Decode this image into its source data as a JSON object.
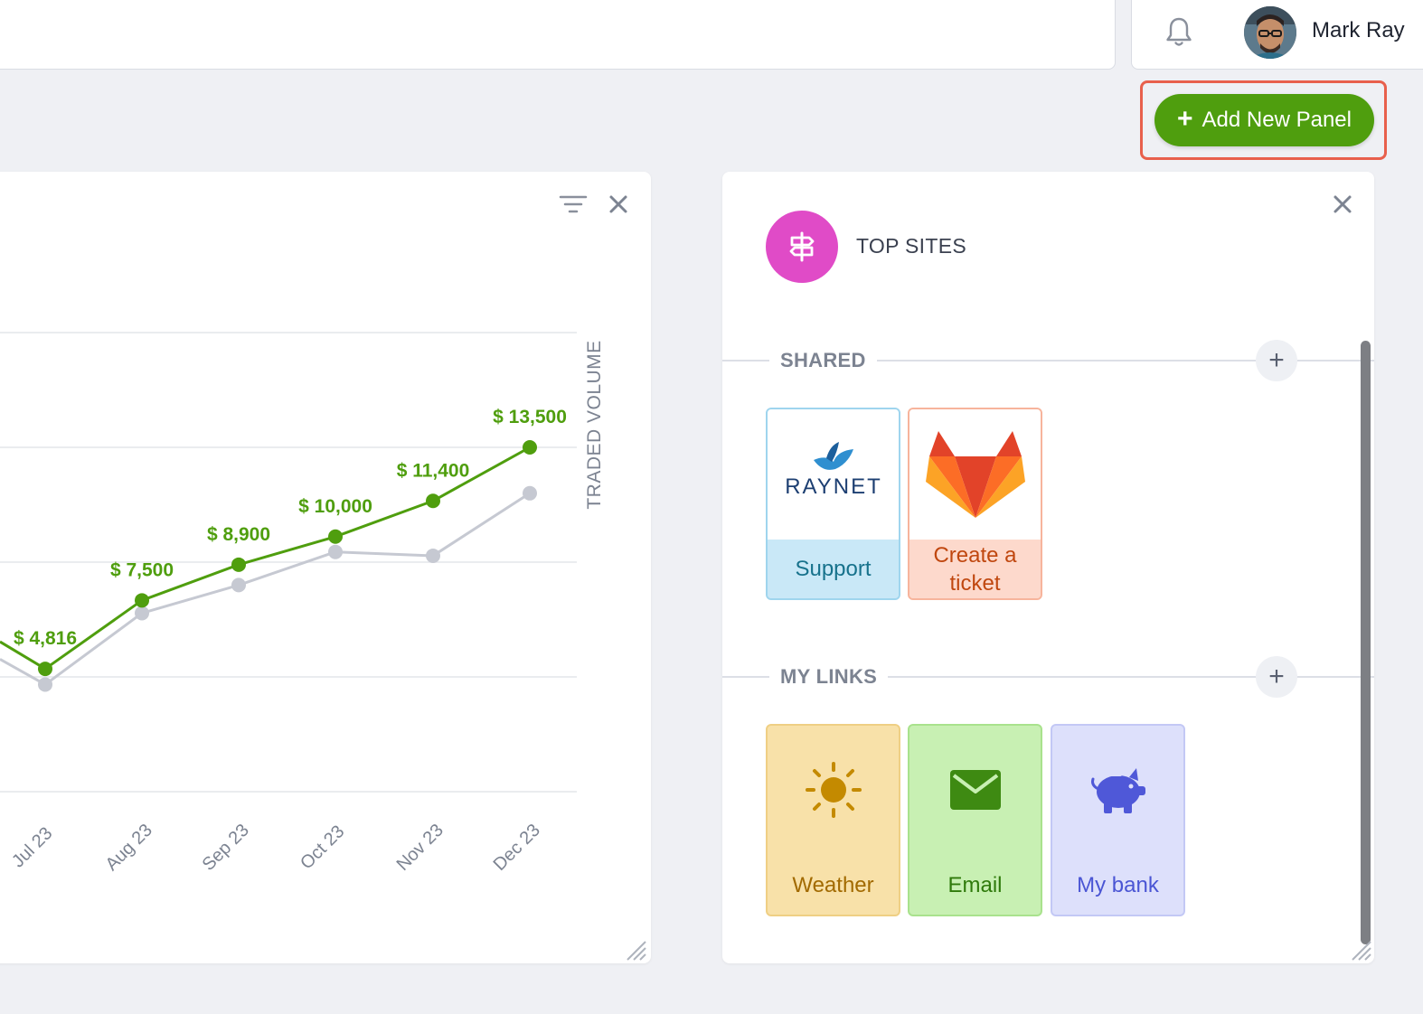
{
  "header": {
    "user_name": "Mark Ray"
  },
  "toolbar": {
    "add_panel_label": "Add New Panel"
  },
  "chart_panel": {
    "axis_title": "TRADED VOLUME"
  },
  "chart_data": {
    "type": "line",
    "x": [
      "Jul 23",
      "Aug 23",
      "Sep 23",
      "Oct 23",
      "Nov 23",
      "Dec 23"
    ],
    "x_tick_labels": [
      "Jul 23",
      "Aug 23",
      "Sep 23",
      "Oct 23",
      "Nov 23",
      "Dec 23"
    ],
    "ylabel": "TRADED VOLUME",
    "ylim": [
      0,
      18000
    ],
    "grid": true,
    "series": [
      {
        "color": "#4f9e0e",
        "values": [
          4816,
          7500,
          8900,
          10000,
          11400,
          13500
        ],
        "data_labels": [
          "$ 4,816",
          "$ 7,500",
          "$ 8,900",
          "$ 10,000",
          "$ 11,400",
          "$ 13,500"
        ]
      },
      {
        "color": "#c6c9d2",
        "values": [
          4200,
          7000,
          8100,
          9400,
          9250,
          11700
        ]
      }
    ]
  },
  "top_sites": {
    "title": "TOP SITES",
    "icon": "signpost-icon",
    "sections": {
      "shared": {
        "label": "SHARED",
        "tiles": [
          {
            "logo_text": "RAYNET",
            "label": "Support",
            "icon": "raynet-logo",
            "bg": "#c9e8f7",
            "fg": "#17728c",
            "border": "#9fd5ee"
          },
          {
            "label": "Create a ticket",
            "icon": "gitlab-logo",
            "bg": "#fdd9cc",
            "fg": "#c0470f",
            "border": "#f7b49c"
          }
        ]
      },
      "my_links": {
        "label": "MY LINKS",
        "tiles": [
          {
            "label": "Weather",
            "icon": "sun-icon",
            "bg": "#f8e1a9",
            "fg": "#a26a00",
            "border": "#efcf84",
            "icon_color": "#c48a00"
          },
          {
            "label": "Email",
            "icon": "envelope-icon",
            "bg": "#c8f0b3",
            "fg": "#2f7a0b",
            "border": "#a9e28d",
            "icon_color": "#3e8a12"
          },
          {
            "label": "My bank",
            "icon": "piggy-bank-icon",
            "bg": "#dde0fb",
            "fg": "#4a55d4",
            "border": "#c3c8f5",
            "icon_color": "#4f58d8"
          }
        ]
      }
    }
  }
}
